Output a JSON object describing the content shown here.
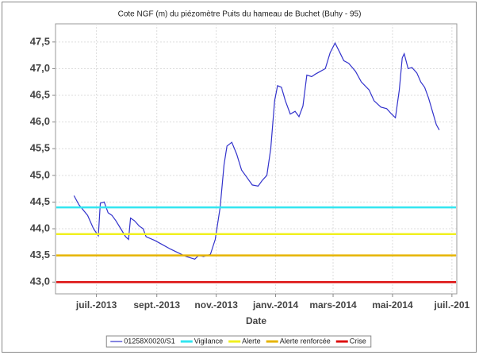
{
  "chart_data": {
    "type": "line",
    "title": "Cote NGF (m) du piézomètre Puits du hameau de Buchet (Buhy - 95)",
    "x_label": "Date",
    "xlim": [
      "2013-05-20",
      "2014-07-06"
    ],
    "xticks": [
      {
        "value": "2013-07-01",
        "label": "juil.-2013"
      },
      {
        "value": "2013-09-01",
        "label": "sept.-2013"
      },
      {
        "value": "2013-11-01",
        "label": "nov.-2013"
      },
      {
        "value": "2014-01-01",
        "label": "janv.-2014"
      },
      {
        "value": "2014-03-01",
        "label": "mars-2014"
      },
      {
        "value": "2014-05-01",
        "label": "mai-2014"
      },
      {
        "value": "2014-07-01",
        "label": "juil.-201"
      }
    ],
    "ylim": [
      42.78,
      47.84
    ],
    "yticks": [
      {
        "value": 43,
        "label": "43,0"
      },
      {
        "value": 43.5,
        "label": "43,5"
      },
      {
        "value": 44,
        "label": "44,0"
      },
      {
        "value": 44.5,
        "label": "44,5"
      },
      {
        "value": 45,
        "label": "45,0"
      },
      {
        "value": 45.5,
        "label": "45,5"
      },
      {
        "value": 46,
        "label": "46,0"
      },
      {
        "value": 46.5,
        "label": "46,5"
      },
      {
        "value": 47,
        "label": "47,0"
      },
      {
        "value": 47.5,
        "label": "47,5"
      }
    ],
    "grid": true,
    "series": [
      {
        "name": "01258X0020/S1",
        "color": "#3333cc",
        "x": [
          "2013-06-08",
          "2013-06-13",
          "2013-06-22",
          "2013-06-28",
          "2013-07-03",
          "2013-07-05",
          "2013-07-09",
          "2013-07-13",
          "2013-07-17",
          "2013-07-21",
          "2013-07-26",
          "2013-07-31",
          "2013-08-03",
          "2013-08-05",
          "2013-08-09",
          "2013-08-14",
          "2013-08-18",
          "2013-08-21",
          "2013-08-30",
          "2013-09-07",
          "2013-09-15",
          "2013-09-23",
          "2013-10-01",
          "2013-10-10",
          "2013-10-14",
          "2013-10-19",
          "2013-10-26",
          "2013-10-31",
          "2013-11-05",
          "2013-11-09",
          "2013-11-12",
          "2013-11-17",
          "2013-11-22",
          "2013-11-27",
          "2013-12-03",
          "2013-12-08",
          "2013-12-14",
          "2013-12-18",
          "2013-12-23",
          "2013-12-27",
          "2013-12-31",
          "2014-01-03",
          "2014-01-07",
          "2014-01-11",
          "2014-01-16",
          "2014-01-21",
          "2014-01-25",
          "2014-01-29",
          "2014-02-02",
          "2014-02-07",
          "2014-02-11",
          "2014-02-16",
          "2014-02-21",
          "2014-02-26",
          "2014-03-03",
          "2014-03-08",
          "2014-03-12",
          "2014-03-17",
          "2014-03-24",
          "2014-03-30",
          "2014-04-07",
          "2014-04-12",
          "2014-04-19",
          "2014-04-25",
          "2014-04-30",
          "2014-05-04",
          "2014-05-08",
          "2014-05-11",
          "2014-05-13",
          "2014-05-17",
          "2014-05-21",
          "2014-05-26",
          "2014-05-30",
          "2014-06-03",
          "2014-06-07",
          "2014-06-11",
          "2014-06-15",
          "2014-06-18"
        ],
        "values": [
          44.62,
          44.45,
          44.25,
          44.0,
          43.87,
          44.48,
          44.5,
          44.3,
          44.25,
          44.15,
          44.0,
          43.85,
          43.8,
          44.2,
          44.15,
          44.05,
          44.0,
          43.85,
          43.78,
          43.7,
          43.62,
          43.55,
          43.48,
          43.43,
          43.5,
          43.48,
          43.52,
          43.8,
          44.4,
          45.2,
          45.55,
          45.62,
          45.4,
          45.1,
          44.95,
          44.82,
          44.8,
          44.9,
          45.0,
          45.5,
          46.4,
          46.68,
          46.65,
          46.4,
          46.15,
          46.2,
          46.1,
          46.3,
          46.88,
          46.85,
          46.9,
          46.95,
          47.0,
          47.3,
          47.48,
          47.3,
          47.15,
          47.1,
          46.95,
          46.75,
          46.6,
          46.4,
          46.28,
          46.25,
          46.15,
          46.08,
          46.6,
          47.2,
          47.28,
          47.0,
          47.02,
          46.92,
          46.75,
          46.65,
          46.45,
          46.2,
          45.95,
          45.85
        ]
      },
      {
        "name": "Vigilance",
        "color": "#33e6f0",
        "value": 44.4
      },
      {
        "name": "Alerte",
        "color": "#f0f020",
        "value": 43.9
      },
      {
        "name": "Alerte renforcée",
        "color": "#e6b400",
        "value": 43.5
      },
      {
        "name": "Crise",
        "color": "#dd1111",
        "value": 43.0
      }
    ]
  }
}
